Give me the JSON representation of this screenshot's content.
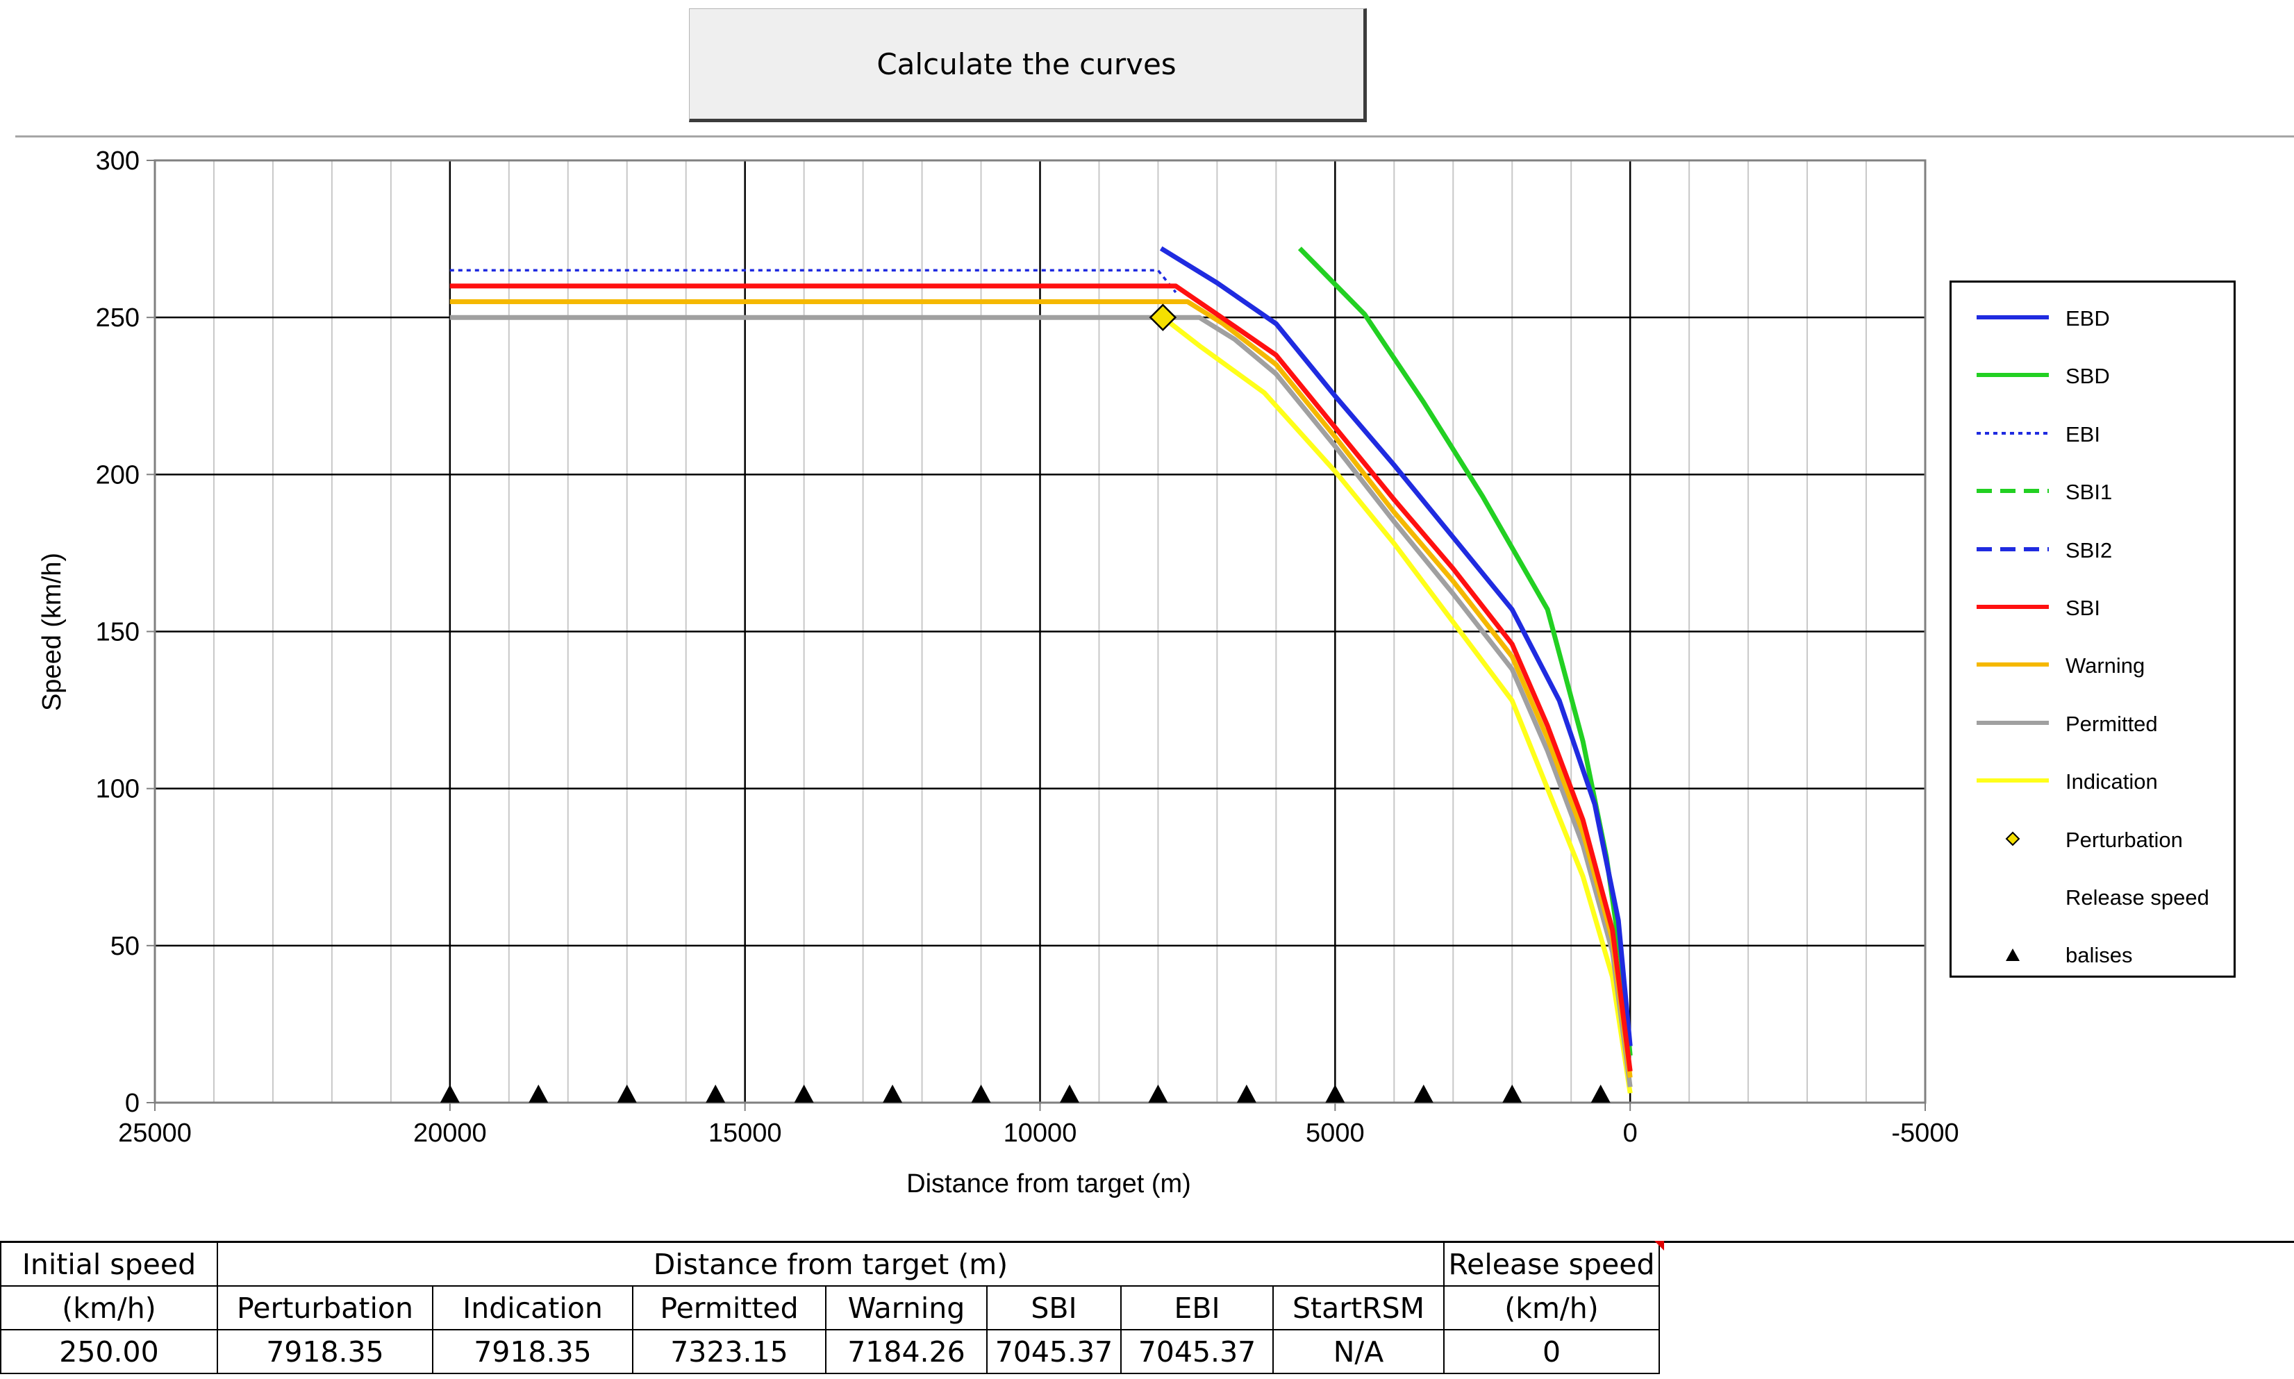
{
  "button": {
    "label": "Calculate the curves"
  },
  "colors": {
    "EBD": "#1f2be0",
    "SBD": "#22d022",
    "EBI": "#1f2be0",
    "SBI1": "#22d022",
    "SBI2": "#1f2be0",
    "SBI": "#ff1010",
    "Warning": "#f5b800",
    "Permitted": "#a0a0a0",
    "Indication": "#ffff1a",
    "Perturbation": "#f5e000",
    "ReleaseSpeed": "#303030",
    "balises": "#000000"
  },
  "chart_data": {
    "type": "line",
    "xlabel": "Distance from target (m)",
    "ylabel": "Speed (km/h)",
    "xlim": [
      25000,
      -5000
    ],
    "ylim": [
      0,
      300
    ],
    "x_reversed": true,
    "x_ticks": [
      25000,
      20000,
      15000,
      10000,
      5000,
      0,
      -5000
    ],
    "y_ticks": [
      0,
      50,
      100,
      150,
      200,
      250,
      300
    ],
    "grid": true,
    "legend_position": "right",
    "series": [
      {
        "name": "EBD",
        "style": "solid",
        "points": [
          [
            7950,
            272
          ],
          [
            7000,
            261
          ],
          [
            6000,
            248
          ],
          [
            5000,
            225
          ],
          [
            4000,
            203
          ],
          [
            3000,
            180
          ],
          [
            2000,
            157
          ],
          [
            1200,
            128
          ],
          [
            600,
            95
          ],
          [
            200,
            58
          ],
          [
            0,
            18
          ]
        ]
      },
      {
        "name": "SBD",
        "style": "solid",
        "points": [
          [
            5600,
            272
          ],
          [
            4500,
            251
          ],
          [
            3500,
            223
          ],
          [
            2500,
            193
          ],
          [
            1400,
            157
          ],
          [
            800,
            115
          ],
          [
            400,
            78
          ],
          [
            150,
            45
          ],
          [
            0,
            15
          ]
        ]
      },
      {
        "name": "EBI",
        "style": "dotted",
        "points": [
          [
            20000,
            265
          ],
          [
            8000,
            265
          ],
          [
            7700,
            258
          ]
        ]
      },
      {
        "name": "SBI1",
        "style": "dashed",
        "points": []
      },
      {
        "name": "SBI2",
        "style": "dashed",
        "points": []
      },
      {
        "name": "SBI",
        "style": "solid",
        "points": [
          [
            20000,
            260
          ],
          [
            7700,
            260
          ],
          [
            7000,
            251
          ],
          [
            6000,
            238
          ],
          [
            5000,
            215
          ],
          [
            4000,
            192
          ],
          [
            3000,
            170
          ],
          [
            2000,
            146
          ],
          [
            1400,
            120
          ],
          [
            800,
            90
          ],
          [
            300,
            55
          ],
          [
            0,
            10
          ]
        ]
      },
      {
        "name": "Warning",
        "style": "solid",
        "points": [
          [
            20000,
            255
          ],
          [
            7500,
            255
          ],
          [
            6900,
            248
          ],
          [
            6000,
            235
          ],
          [
            5000,
            212
          ],
          [
            4000,
            188
          ],
          [
            3000,
            166
          ],
          [
            2000,
            142
          ],
          [
            1400,
            116
          ],
          [
            800,
            86
          ],
          [
            300,
            52
          ],
          [
            0,
            8
          ]
        ]
      },
      {
        "name": "Permitted",
        "style": "solid",
        "points": [
          [
            20000,
            250
          ],
          [
            7300,
            250
          ],
          [
            6700,
            243
          ],
          [
            6000,
            232
          ],
          [
            5000,
            209
          ],
          [
            4000,
            185
          ],
          [
            3000,
            162
          ],
          [
            2000,
            138
          ],
          [
            1400,
            112
          ],
          [
            800,
            82
          ],
          [
            300,
            48
          ],
          [
            0,
            5
          ]
        ]
      },
      {
        "name": "Indication",
        "style": "solid",
        "points": [
          [
            7918,
            250
          ],
          [
            7300,
            241
          ],
          [
            6200,
            226
          ],
          [
            5000,
            201
          ],
          [
            4000,
            178
          ],
          [
            3000,
            153
          ],
          [
            2000,
            128
          ],
          [
            1400,
            100
          ],
          [
            800,
            72
          ],
          [
            300,
            40
          ],
          [
            0,
            3
          ]
        ]
      },
      {
        "name": "Release speed",
        "style": "solid",
        "points": [
          [
            8000,
            0.5
          ],
          [
            0,
            0.5
          ]
        ]
      }
    ],
    "perturbation": {
      "name": "Perturbation",
      "x": 7918.35,
      "y": 250
    },
    "balises": {
      "name": "balises",
      "x": [
        20000,
        18500,
        17000,
        15500,
        14000,
        12500,
        11000,
        9500,
        8000,
        6500,
        5000,
        3500,
        2000,
        500
      ],
      "y": 0
    }
  },
  "results_table": {
    "initial_speed_header": [
      "Initial speed",
      "(km/h)"
    ],
    "distance_header": "Distance from target (m)",
    "release_header": [
      "Release speed",
      "(km/h)"
    ],
    "subheaders": [
      "Perturbation",
      "Indication",
      "Permitted",
      "Warning",
      "SBI",
      "EBI",
      "StartRSM"
    ],
    "values": {
      "initial_speed": "250.00",
      "distances": [
        "7918.35",
        "7918.35",
        "7323.15",
        "7184.26",
        "7045.37",
        "7045.37",
        "N/A"
      ],
      "release_speed": "0"
    }
  }
}
